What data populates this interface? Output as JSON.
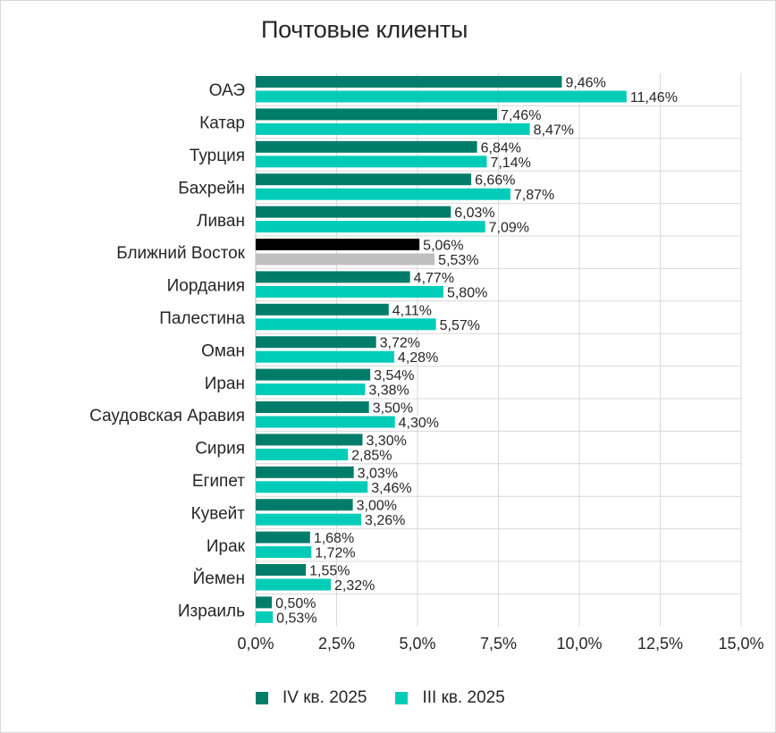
{
  "chart_data": {
    "type": "bar",
    "orientation": "horizontal",
    "title": "Почтовые клиенты",
    "xlabel": "",
    "ylabel": "",
    "xlim": [
      0,
      15
    ],
    "x_ticks": [
      0,
      2.5,
      5,
      7.5,
      10,
      12.5,
      15
    ],
    "x_tick_labels": [
      "0,0%",
      "2,5%",
      "5,0%",
      "7,5%",
      "10,0%",
      "12,5%",
      "15,0%"
    ],
    "grid": true,
    "legend_position": "bottom",
    "categories": [
      "ОАЭ",
      "Катар",
      "Турция",
      "Бахрейн",
      "Ливан",
      "Ближний Восток",
      "Иордания",
      "Палестина",
      "Оман",
      "Иран",
      "Саудовская Аравия",
      "Сирия",
      "Египет",
      "Кувейт",
      "Ирак",
      "Йемен",
      "Израиль"
    ],
    "highlight_category": "Ближний Восток",
    "highlight_colors": [
      "#000000",
      "#bfbfbf"
    ],
    "series": [
      {
        "name": "IV кв. 2025",
        "color": "#007d6a",
        "values": [
          9.46,
          7.46,
          6.84,
          6.66,
          6.03,
          5.06,
          4.77,
          4.11,
          3.72,
          3.54,
          3.5,
          3.3,
          3.03,
          3.0,
          1.68,
          1.55,
          0.5
        ],
        "labels": [
          "9,46%",
          "7,46%",
          "6,84%",
          "6,66%",
          "6,03%",
          "5,06%",
          "4,77%",
          "4,11%",
          "3,72%",
          "3,54%",
          "3,50%",
          "3,30%",
          "3,03%",
          "3,00%",
          "1,68%",
          "1,55%",
          "0,50%"
        ]
      },
      {
        "name": "III кв. 2025",
        "color": "#00ccb8",
        "values": [
          11.46,
          8.47,
          7.14,
          7.87,
          7.09,
          5.53,
          5.8,
          5.57,
          4.28,
          3.38,
          4.3,
          2.85,
          3.46,
          3.26,
          1.72,
          2.32,
          0.53
        ],
        "labels": [
          "11,46%",
          "8,47%",
          "7,14%",
          "7,87%",
          "7,09%",
          "5,53%",
          "5,80%",
          "5,57%",
          "4,28%",
          "3,38%",
          "4,30%",
          "2,85%",
          "3,46%",
          "3,26%",
          "1,72%",
          "2,32%",
          "0,53%"
        ]
      }
    ]
  }
}
